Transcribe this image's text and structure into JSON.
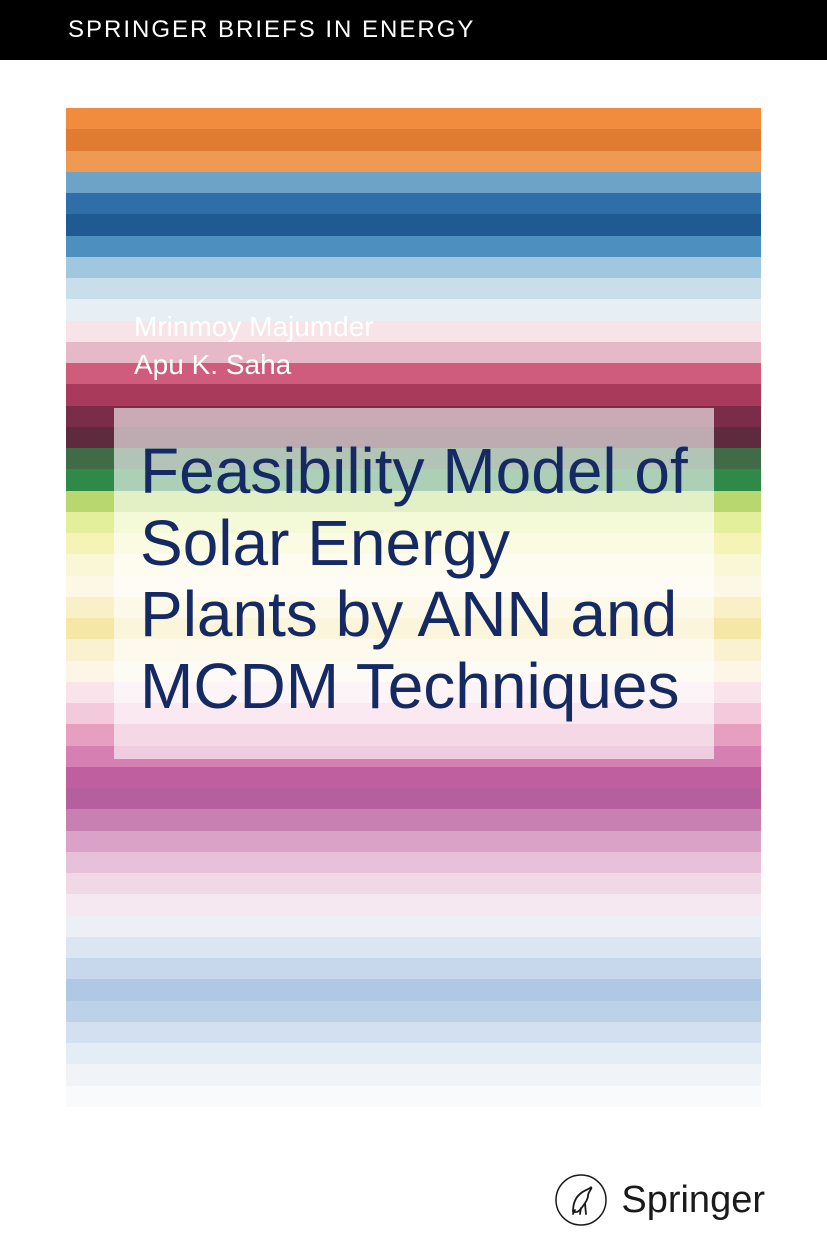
{
  "series": "SPRINGER BRIEFS IN ENERGY",
  "authors": [
    "Mrinmoy Majumder",
    "Apu K. Saha"
  ],
  "title": "Feasibility Model of Solar Energy Plants by ANN and MCDM Techniques",
  "publisher": "Springer",
  "colors": {
    "header_bg": "#000000",
    "header_text": "#ffffff",
    "author_text": "#ffffff",
    "title_text": "#152a63",
    "title_box_bg": "rgba(255,255,255,0.6)"
  },
  "stripe_colors": [
    "#f18b3e",
    "#e07c32",
    "#ef9a52",
    "#6ea3c8",
    "#2f6fa8",
    "#1f5a93",
    "#4d8fbf",
    "#9fc7de",
    "#c8dfeb",
    "#e8eff4",
    "#f7e4e8",
    "#e7b9c8",
    "#cf5b7d",
    "#a93a5c",
    "#7a2d48",
    "#5d2b3d",
    "#3f6b46",
    "#2f8a4a",
    "#b8d86f",
    "#e4ef9c",
    "#f5f3b6",
    "#faf7d6",
    "#fdf7e6",
    "#faf0c8",
    "#f5e7a6",
    "#f9f1cf",
    "#fdf6e6",
    "#f9e4ec",
    "#f4c9db",
    "#e79fc0",
    "#d67fb2",
    "#c05f9f",
    "#b55f9e",
    "#c880b2",
    "#d9a3c8",
    "#e7c1da",
    "#f0d8e7",
    "#f6e8f0",
    "#eceff6",
    "#dce6f2",
    "#c7d8ec",
    "#afc8e3",
    "#bcd2e8",
    "#d2e0ef",
    "#e4ecf5",
    "#f0f4f9",
    "#f8fafc",
    "#ffffff"
  ]
}
